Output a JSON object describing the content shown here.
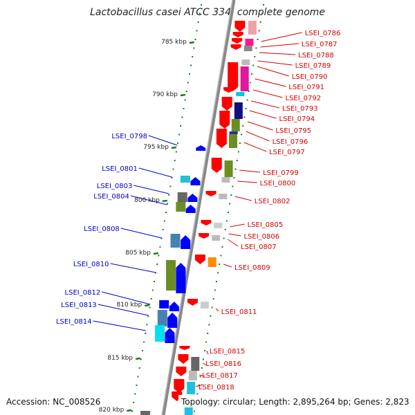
{
  "title": "Lactobacillus casei ATCC 334, complete genome",
  "accession": "Accession: NC_008526",
  "topology": "Topology: circular; Length: 2,895,264 bp; Genes: 2,823",
  "colors": {
    "forward_gene": "#ff0000",
    "reverse_gene": "#0000ff",
    "backbone": "#808080",
    "ticks": "#1a7a1a"
  },
  "scale_labels": [
    "785 kbp",
    "790 kbp",
    "795 kbp",
    "800 kbp",
    "805 kbp",
    "810 kbp",
    "815 kbp",
    "820 kbp"
  ],
  "forward_genes": [
    "LSEI_0786",
    "LSEI_0787",
    "LSEI_0788",
    "LSEI_0789",
    "LSEI_0790",
    "LSEI_0791",
    "LSEI_0792",
    "LSEI_0793",
    "LSEI_0794",
    "LSEI_0795",
    "LSEI_0796",
    "LSEI_0797",
    "LSEI_0799",
    "LSEI_0800",
    "LSEI_0802",
    "LSEI_0805",
    "LSEI_0806",
    "LSEI_0807",
    "LSEI_0809",
    "LSEI_0811",
    "LSEI_0815",
    "LSEI_0816",
    "LSEI_0817",
    "LSEI_0818"
  ],
  "reverse_genes": [
    "LSEI_0798",
    "LSEI_0801",
    "LSEI_0803",
    "LSEI_0804",
    "LSEI_0808",
    "LSEI_0810",
    "LSEI_0812",
    "LSEI_0813",
    "LSEI_0814"
  ]
}
